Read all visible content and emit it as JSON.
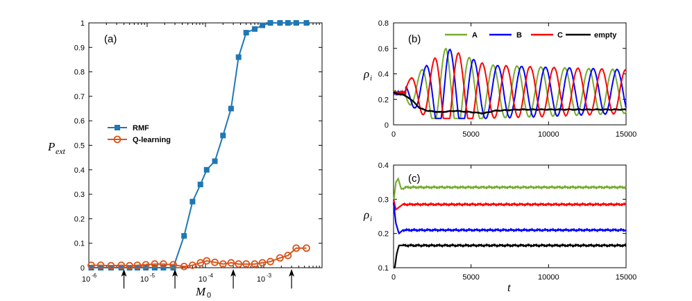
{
  "colors": {
    "rmf": "#1f77b4",
    "qlearning": "#d9541a",
    "A": "#77ac30",
    "B": "#0000ff",
    "C": "#ff0000",
    "empty": "#000000"
  },
  "chart_data": [
    {
      "id": "a",
      "type": "line",
      "panel_label": "(a)",
      "xscale": "log",
      "xlabel": "M",
      "xlabel_sub": "0",
      "ylabel": "P",
      "ylabel_sub": "ext",
      "xlim": [
        1e-06,
        0.01
      ],
      "ylim": [
        0,
        1
      ],
      "x_ticks": [
        {
          "base": "10",
          "exp": "-6",
          "value": 1e-06
        },
        {
          "base": "10",
          "exp": "-5",
          "value": 1e-05
        },
        {
          "base": "10",
          "exp": "-4",
          "value": 0.0001
        },
        {
          "base": "10",
          "exp": "-3",
          "value": 0.001
        }
      ],
      "y_ticks": [
        "0",
        "0.1",
        "0.2",
        "0.3",
        "0.4",
        "0.5",
        "0.6",
        "0.7",
        "0.8",
        "0.9",
        "1"
      ],
      "arrow_x": [
        4e-06,
        3e-05,
        0.0003,
        0.003
      ],
      "legend": "left-middle",
      "series": [
        {
          "name": "RMF",
          "marker": "square",
          "x": [
            1.1e-06,
            1.6e-06,
            2.4e-06,
            3.6e-06,
            5e-06,
            6.8e-06,
            9.5e-06,
            1.35e-05,
            1.9e-05,
            2.8e-05,
            4.3e-05,
            6e-05,
            8.2e-05,
            0.000105,
            0.000145,
            0.0002,
            0.000275,
            0.00037,
            0.0005,
            0.0007,
            0.00095,
            0.0013,
            0.0019,
            0.0026,
            0.0036,
            0.0054
          ],
          "y": [
            0,
            0,
            0,
            0,
            0,
            0,
            0,
            0,
            0,
            0,
            0.13,
            0.27,
            0.34,
            0.4,
            0.435,
            0.54,
            0.65,
            0.86,
            0.96,
            0.975,
            0.99,
            1.0,
            1.0,
            1.0,
            1.0,
            1.0
          ]
        },
        {
          "name": "Q-learning",
          "marker": "circle",
          "x": [
            1.1e-06,
            1.6e-06,
            2.4e-06,
            3.6e-06,
            5e-06,
            6.8e-06,
            9.5e-06,
            1.35e-05,
            1.9e-05,
            2.8e-05,
            4.3e-05,
            6e-05,
            8.2e-05,
            0.000105,
            0.000145,
            0.0002,
            0.000275,
            0.00037,
            0.0005,
            0.0007,
            0.00095,
            0.0013,
            0.0019,
            0.0026,
            0.0036,
            0.0054
          ],
          "y": [
            0.01,
            0.01,
            0.008,
            0.01,
            0.008,
            0.01,
            0.012,
            0.015,
            0.015,
            0.012,
            0.005,
            0.01,
            0.02,
            0.028,
            0.022,
            0.015,
            0.02,
            0.015,
            0.015,
            0.015,
            0.02,
            0.025,
            0.04,
            0.05,
            0.08,
            0.08
          ]
        }
      ]
    },
    {
      "id": "b",
      "type": "line",
      "panel_label": "(b)",
      "xlabel": "",
      "ylabel": "ρ",
      "ylabel_sub": "i",
      "xlim": [
        0,
        15000
      ],
      "ylim": [
        0,
        0.8
      ],
      "x_ticks": [
        "0",
        "5000",
        "10000",
        "15000"
      ],
      "y_ticks": [
        "0",
        "0.2",
        "0.4",
        "0.6",
        "0.8"
      ],
      "legend": "top",
      "series": [
        {
          "name": "A",
          "model": {
            "base": 0.25,
            "amp_points": [
              [
                0,
                0
              ],
              [
                2000,
                0.2
              ],
              [
                3400,
                0.36
              ],
              [
                6000,
                0.22
              ],
              [
                15000,
                0.18
              ]
            ],
            "period": 1540,
            "phase": 3.4,
            "first_peak": 3400
          }
        },
        {
          "name": "B",
          "model": {
            "base": 0.25,
            "amp_points": [
              [
                0,
                0
              ],
              [
                2000,
                0.2
              ],
              [
                3400,
                0.36
              ],
              [
                6000,
                0.22
              ],
              [
                15000,
                0.18
              ]
            ],
            "period": 1540,
            "phase": 3.4,
            "first_peak": 5700
          }
        },
        {
          "name": "C",
          "model": {
            "base": 0.25,
            "amp_points": [
              [
                0,
                0
              ],
              [
                2000,
                0.2
              ],
              [
                3400,
                0.36
              ],
              [
                6000,
                0.22
              ],
              [
                15000,
                0.18
              ]
            ],
            "period": 1540,
            "phase": 3.4,
            "first_peak": 4300
          }
        },
        {
          "name": "empty",
          "x": [
            0,
            500,
            900,
            1300,
            1700,
            2200,
            3000,
            4000,
            5000,
            5800,
            6500,
            8000,
            10000,
            12000,
            15000
          ],
          "y": [
            0.25,
            0.24,
            0.22,
            0.18,
            0.13,
            0.11,
            0.1,
            0.11,
            0.1,
            0.09,
            0.11,
            0.12,
            0.12,
            0.12,
            0.12
          ]
        }
      ]
    },
    {
      "id": "c",
      "type": "line",
      "panel_label": "(c)",
      "xlabel": "t",
      "ylabel": "ρ",
      "ylabel_sub": "i",
      "xlim": [
        0,
        15000
      ],
      "ylim": [
        0.1,
        0.4
      ],
      "x_ticks": [
        "0",
        "5000",
        "10000",
        "15000"
      ],
      "y_ticks": [
        "0.1",
        "0.2",
        "0.3",
        "0.4"
      ],
      "series": [
        {
          "name": "A",
          "x": [
            0,
            150,
            300,
            500,
            800,
            1200,
            15000
          ],
          "y": [
            0.29,
            0.35,
            0.36,
            0.33,
            0.335,
            0.335,
            0.335
          ]
        },
        {
          "name": "C",
          "x": [
            0,
            150,
            300,
            600,
            900,
            15000
          ],
          "y": [
            0.3,
            0.27,
            0.275,
            0.285,
            0.285,
            0.285
          ]
        },
        {
          "name": "B",
          "x": [
            0,
            150,
            350,
            600,
            1000,
            15000
          ],
          "y": [
            0.29,
            0.23,
            0.2,
            0.21,
            0.21,
            0.21
          ]
        },
        {
          "name": "empty",
          "x": [
            0,
            80,
            200,
            350,
            600,
            15000
          ],
          "y": [
            0.1,
            0.1,
            0.14,
            0.165,
            0.165,
            0.165
          ]
        }
      ]
    }
  ]
}
